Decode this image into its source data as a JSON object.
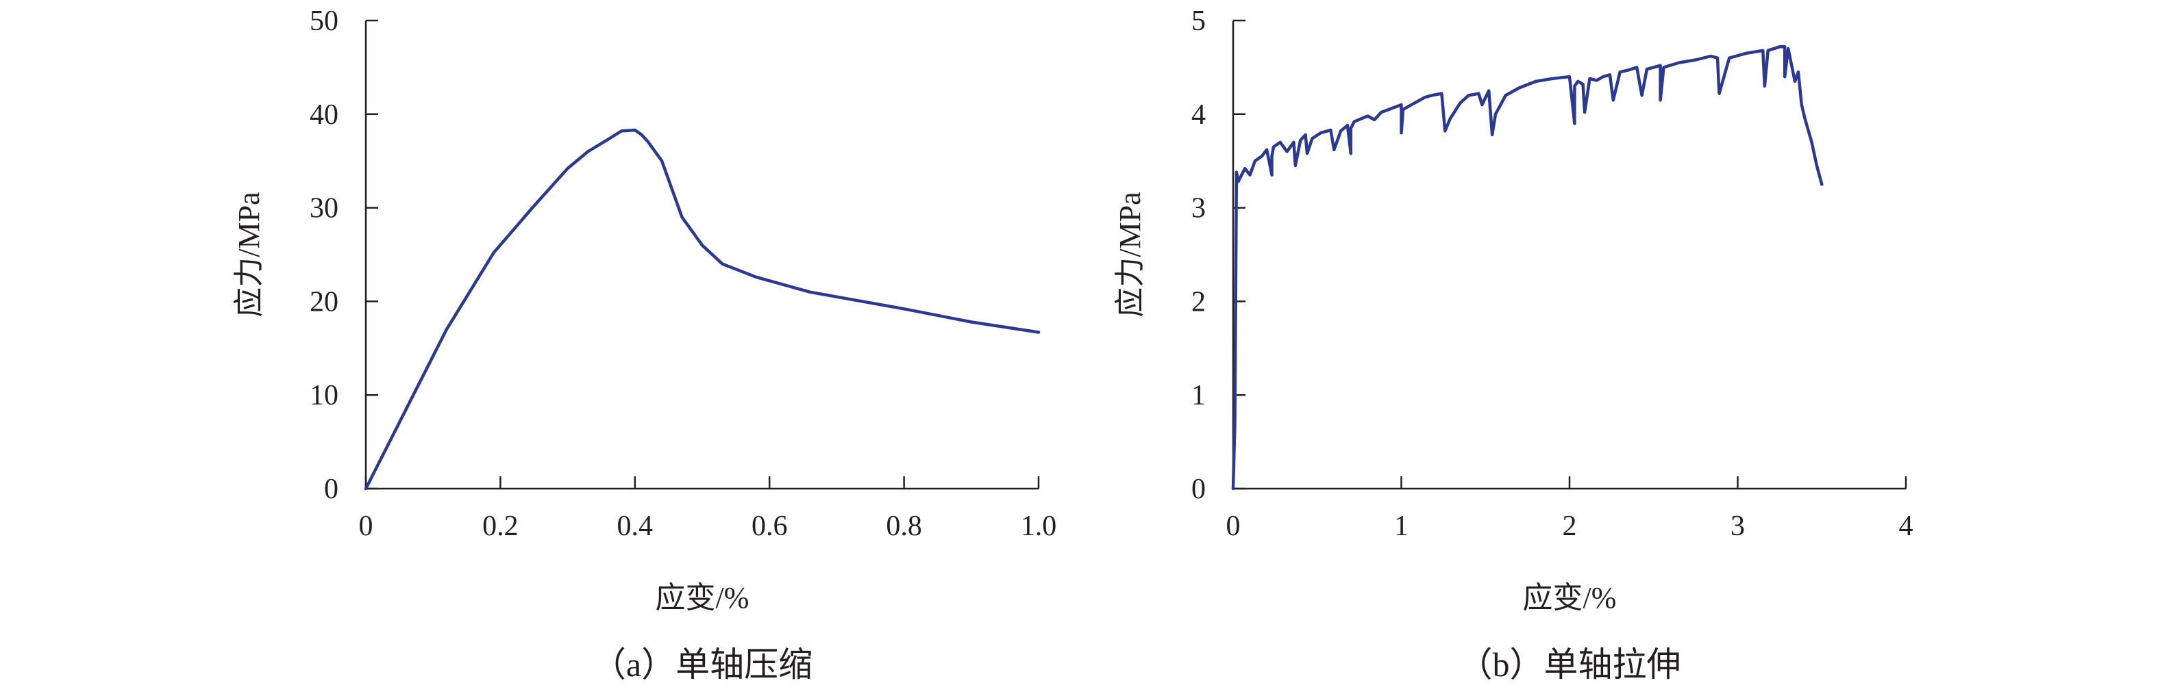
{
  "chart_data": [
    {
      "type": "line",
      "caption": "（a）单轴压缩",
      "xlabel": "应变/%",
      "ylabel": "应力/MPa",
      "xlim": [
        0,
        1.0
      ],
      "ylim": [
        0,
        50
      ],
      "xticks": [
        0,
        0.2,
        0.4,
        0.6,
        0.8,
        1.0
      ],
      "xtick_labels": [
        "0",
        "0.2",
        "0.4",
        "0.6",
        "0.8",
        "1.0"
      ],
      "yticks": [
        0,
        10,
        20,
        30,
        40,
        50
      ],
      "ytick_labels": [
        "0",
        "10",
        "20",
        "30",
        "40",
        "50"
      ],
      "grid": false,
      "line_color": "#2b3990",
      "series": [
        {
          "x": [
            0,
            0.06,
            0.12,
            0.19,
            0.25,
            0.3,
            0.33,
            0.36,
            0.38,
            0.4,
            0.41,
            0.42,
            0.44,
            0.47,
            0.5,
            0.53,
            0.58,
            0.66,
            0.8,
            0.9,
            1.0
          ],
          "y": [
            0,
            8.5,
            17,
            25.2,
            30.2,
            34.2,
            36,
            37.3,
            38.2,
            38.3,
            37.8,
            37,
            35,
            29,
            26,
            24,
            22.6,
            21,
            19.2,
            17.8,
            16.7
          ]
        }
      ]
    },
    {
      "type": "line",
      "caption": "（b）单轴拉伸",
      "xlabel": "应变/%",
      "ylabel": "应力/MPa",
      "xlim": [
        0,
        4
      ],
      "ylim": [
        0,
        5
      ],
      "xticks": [
        0,
        1,
        2,
        3,
        4
      ],
      "xtick_labels": [
        "0",
        "1",
        "2",
        "3",
        "4"
      ],
      "yticks": [
        0,
        1,
        2,
        3,
        4,
        5
      ],
      "ytick_labels": [
        "0",
        "1",
        "2",
        "3",
        "4",
        "5"
      ],
      "grid": false,
      "line_color": "#2b3990",
      "series": [
        {
          "x": [
            0,
            0,
            0.01,
            0.02,
            0.03,
            0.07,
            0.1,
            0.13,
            0.17,
            0.2,
            0.23,
            0.23,
            0.24,
            0.28,
            0.32,
            0.36,
            0.37,
            0.4,
            0.43,
            0.44,
            0.47,
            0.52,
            0.58,
            0.6,
            0.64,
            0.68,
            0.7,
            0.7,
            0.72,
            0.8,
            0.84,
            0.88,
            0.94,
            1.0,
            1.0,
            1.01,
            1.06,
            1.1,
            1.14,
            1.18,
            1.24,
            1.26,
            1.29,
            1.35,
            1.4,
            1.46,
            1.48,
            1.52,
            1.54,
            1.56,
            1.62,
            1.7,
            1.8,
            1.9,
            2.0,
            2.03,
            2.03,
            2.05,
            2.08,
            2.09,
            2.12,
            2.16,
            2.2,
            2.24,
            2.26,
            2.3,
            2.35,
            2.4,
            2.43,
            2.46,
            2.5,
            2.54,
            2.54,
            2.56,
            2.65,
            2.75,
            2.84,
            2.88,
            2.89,
            2.95,
            3.05,
            3.15,
            3.16,
            3.18,
            3.25,
            3.28,
            3.28,
            3.3,
            3.34,
            3.36,
            3.38,
            3.4,
            3.44,
            3.47,
            3.5
          ],
          "y": [
            0,
            0,
            0.7,
            3.38,
            3.28,
            3.42,
            3.35,
            3.5,
            3.55,
            3.62,
            3.35,
            3.55,
            3.65,
            3.7,
            3.6,
            3.7,
            3.45,
            3.72,
            3.78,
            3.58,
            3.74,
            3.8,
            3.83,
            3.62,
            3.82,
            3.88,
            3.58,
            3.85,
            3.92,
            3.98,
            3.94,
            4.02,
            4.06,
            4.1,
            3.8,
            4.05,
            4.1,
            4.14,
            4.18,
            4.2,
            4.22,
            3.82,
            3.95,
            4.12,
            4.2,
            4.22,
            4.1,
            4.25,
            3.78,
            4.0,
            4.2,
            4.28,
            4.35,
            4.38,
            4.4,
            3.9,
            4.3,
            4.35,
            4.32,
            4.02,
            4.38,
            4.36,
            4.4,
            4.42,
            4.15,
            4.45,
            4.47,
            4.5,
            4.2,
            4.48,
            4.5,
            4.52,
            4.15,
            4.5,
            4.55,
            4.58,
            4.62,
            4.6,
            4.22,
            4.6,
            4.65,
            4.68,
            4.3,
            4.68,
            4.72,
            4.72,
            4.4,
            4.7,
            4.35,
            4.45,
            4.1,
            3.95,
            3.7,
            3.45,
            3.25
          ]
        }
      ]
    }
  ]
}
